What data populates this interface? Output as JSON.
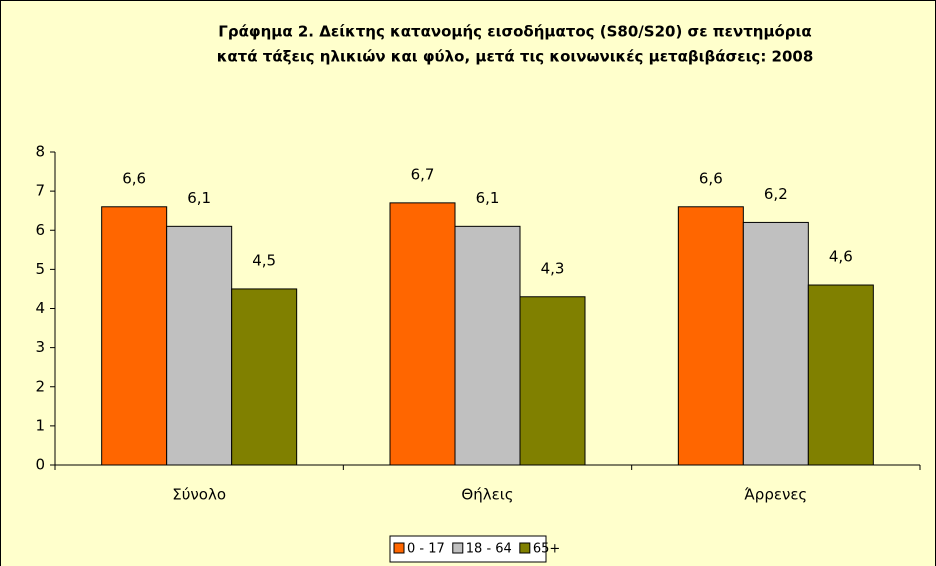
{
  "chart_data": {
    "type": "bar",
    "title": [
      "Γράφημα 2. Δείκτης  κατανομής εισοδήματος (S80/S20)  σε πεντημόρια",
      "κατά  τάξεις ηλικιών και φύλο, μετά τις κοινωνικές μεταβιβάσεις: 2008"
    ],
    "categories": [
      "Σύνολο",
      "Θήλεις",
      "Άρρενες"
    ],
    "series": [
      {
        "name": "0 - 17",
        "color": "#ff6600",
        "values": [
          6.6,
          6.7,
          6.6
        ],
        "value_labels": [
          "6,6",
          "6,7",
          "6,6"
        ]
      },
      {
        "name": "18 - 64",
        "color": "#c0c0c0",
        "values": [
          6.1,
          6.1,
          6.2
        ],
        "value_labels": [
          "6,1",
          "6,1",
          "6,2"
        ]
      },
      {
        "name": "65+",
        "color": "#808000",
        "values": [
          4.5,
          4.3,
          4.6
        ],
        "value_labels": [
          "4,5",
          "4,3",
          "4,6"
        ]
      }
    ],
    "ylim": [
      0,
      8
    ],
    "yticks": [
      0,
      1,
      2,
      3,
      4,
      5,
      6,
      7,
      8
    ],
    "grid": false,
    "legend": "bottom"
  }
}
